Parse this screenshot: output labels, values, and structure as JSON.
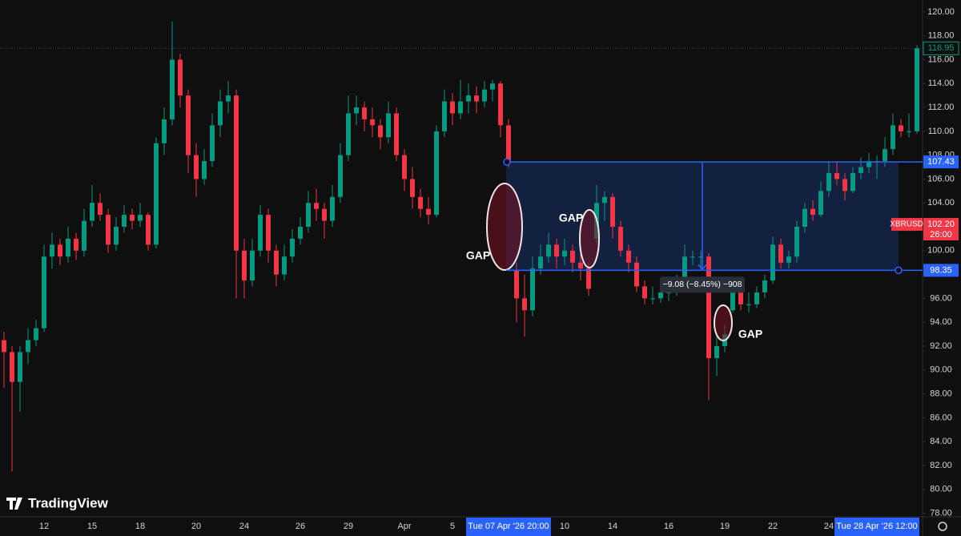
{
  "chart_data": {
    "type": "candlestick",
    "symbol": "XBRUSD",
    "up_color": "#089981",
    "down_color": "#f23645",
    "ylim": [
      77.7,
      121.0
    ],
    "yticks": [
      {
        "value": 78,
        "label": "78.00"
      },
      {
        "value": 80,
        "label": "80.00"
      },
      {
        "value": 82,
        "label": "82.00"
      },
      {
        "value": 84,
        "label": "84.00"
      },
      {
        "value": 86,
        "label": "86.00"
      },
      {
        "value": 88,
        "label": "88.00"
      },
      {
        "value": 90,
        "label": "90.00"
      },
      {
        "value": 92,
        "label": "92.00"
      },
      {
        "value": 94,
        "label": "94.00"
      },
      {
        "value": 96,
        "label": "96.00"
      },
      {
        "value": 100,
        "label": "100.00"
      },
      {
        "value": 104,
        "label": "104.00"
      },
      {
        "value": 106,
        "label": "106.00"
      },
      {
        "value": 108,
        "label": "108.00"
      },
      {
        "value": 110,
        "label": "110.00"
      },
      {
        "value": 112,
        "label": "112.00"
      },
      {
        "value": 114,
        "label": "114.00"
      },
      {
        "value": 116,
        "label": "116.00"
      },
      {
        "value": 118,
        "label": "118.00"
      },
      {
        "value": 120,
        "label": "120.00"
      }
    ],
    "categories": [
      null,
      null,
      null,
      null,
      null,
      "12",
      null,
      null,
      null,
      null,
      null,
      "15",
      null,
      null,
      null,
      null,
      null,
      "18",
      null,
      null,
      null,
      null,
      null,
      null,
      "20",
      null,
      null,
      null,
      null,
      null,
      "24",
      null,
      null,
      null,
      null,
      null,
      null,
      "26",
      null,
      null,
      null,
      null,
      null,
      "29",
      null,
      null,
      null,
      null,
      null,
      null,
      "Apr",
      null,
      null,
      null,
      null,
      null,
      "5",
      null,
      null,
      null,
      null,
      null,
      null,
      {
        "label": "Tue 07 Apr '26  20:00",
        "highlight": true
      },
      null,
      null,
      null,
      null,
      null,
      null,
      "10",
      null,
      null,
      null,
      null,
      null,
      "14",
      null,
      null,
      null,
      null,
      null,
      null,
      "16",
      null,
      null,
      null,
      null,
      null,
      null,
      "19",
      null,
      null,
      null,
      null,
      null,
      "22",
      null,
      null,
      null,
      null,
      null,
      null,
      "24",
      null,
      null,
      null,
      null,
      null,
      {
        "label": "Tue 28 Apr '26  12:00",
        "highlight": true
      },
      null,
      null,
      null,
      null,
      null
    ],
    "candles": [
      [
        92.5,
        93.2,
        88.5,
        91.5
      ],
      [
        91.5,
        92,
        81.5,
        89
      ],
      [
        89,
        92,
        86.5,
        91.5
      ],
      [
        91.5,
        93.5,
        90.5,
        92.5
      ],
      [
        92.5,
        94.2,
        92,
        93.5
      ],
      [
        93.5,
        100.5,
        93.2,
        99.5
      ],
      [
        99.5,
        101.5,
        98.5,
        100.5
      ],
      [
        100.5,
        101,
        98.8,
        99.5
      ],
      [
        99.5,
        102,
        99,
        101
      ],
      [
        101,
        101.5,
        99.2,
        100
      ],
      [
        100,
        103.5,
        99.5,
        102.5
      ],
      [
        102.5,
        105.5,
        102,
        104
      ],
      [
        104,
        104.8,
        102.5,
        103
      ],
      [
        103,
        103.5,
        99.8,
        100.5
      ],
      [
        100.5,
        102.8,
        100,
        102
      ],
      [
        102,
        103.8,
        101.5,
        103
      ],
      [
        103,
        103.5,
        101.8,
        102.5
      ],
      [
        102.5,
        104,
        102,
        103
      ],
      [
        103,
        103.2,
        100,
        100.5
      ],
      [
        100.5,
        109.5,
        100.2,
        109
      ],
      [
        109,
        112,
        108,
        111
      ],
      [
        111,
        119.2,
        110.5,
        116
      ],
      [
        116,
        116.5,
        112,
        113
      ],
      [
        113,
        113.5,
        106.5,
        108
      ],
      [
        108,
        109,
        104.5,
        106
      ],
      [
        106,
        108.5,
        105.5,
        107.5
      ],
      [
        107.5,
        111.5,
        107,
        110.5
      ],
      [
        110.5,
        113.5,
        109.5,
        112.5
      ],
      [
        112.5,
        114.2,
        111.5,
        113
      ],
      [
        113,
        113.5,
        96,
        100
      ],
      [
        100,
        101,
        96,
        97.5
      ],
      [
        97.5,
        101,
        97,
        100
      ],
      [
        100,
        103.8,
        99.5,
        103
      ],
      [
        103,
        103.5,
        99,
        100
      ],
      [
        100,
        100.5,
        97,
        98
      ],
      [
        98,
        100.5,
        97.5,
        99.5
      ],
      [
        99.5,
        101.8,
        99,
        101
      ],
      [
        101,
        102.8,
        100.5,
        102
      ],
      [
        102,
        105,
        101.5,
        104
      ],
      [
        104,
        105.2,
        102.5,
        103.5
      ],
      [
        103.5,
        104,
        101,
        102.5
      ],
      [
        102.5,
        105.5,
        102,
        104.5
      ],
      [
        104.5,
        109,
        104,
        108
      ],
      [
        108,
        113,
        107.5,
        111.5
      ],
      [
        111.5,
        113,
        110.5,
        112
      ],
      [
        112,
        112.5,
        110,
        111
      ],
      [
        111,
        112,
        109.5,
        110.5
      ],
      [
        110.5,
        111,
        108.5,
        109.5
      ],
      [
        109.5,
        112.5,
        109,
        111.5
      ],
      [
        111.5,
        112,
        107.5,
        108
      ],
      [
        108,
        108.5,
        105,
        106
      ],
      [
        106,
        107,
        103.5,
        104.5
      ],
      [
        104.5,
        105.2,
        102.8,
        103.5
      ],
      [
        103.5,
        104.5,
        102.2,
        103
      ],
      [
        103,
        110.5,
        102.8,
        110
      ],
      [
        110,
        113.5,
        109.5,
        112.5
      ],
      [
        112.5,
        113.2,
        110.5,
        111.5
      ],
      [
        111.5,
        114.3,
        111,
        112.5
      ],
      [
        112.5,
        114,
        111.5,
        113
      ],
      [
        113,
        113.8,
        111.5,
        112.5
      ],
      [
        112.5,
        114.2,
        112,
        113.5
      ],
      [
        113.5,
        114.3,
        112.5,
        114
      ],
      [
        114,
        114.2,
        109.5,
        110.5
      ],
      [
        110.5,
        111,
        107,
        107.5
      ],
      [
        98.3,
        99,
        94,
        96
      ],
      [
        96,
        98,
        92.8,
        95
      ],
      [
        95,
        99.5,
        94.5,
        98.5
      ],
      [
        98.5,
        100.5,
        98,
        99.5
      ],
      [
        99.5,
        101.5,
        99,
        100.5
      ],
      [
        100.5,
        101,
        98.5,
        99.5
      ],
      [
        99.5,
        101,
        98.8,
        100
      ],
      [
        100,
        100.5,
        98.2,
        99
      ],
      [
        99,
        100,
        97.5,
        98.5
      ],
      [
        98.5,
        99,
        96.2,
        96.8
      ],
      [
        101,
        105.5,
        100.5,
        104
      ],
      [
        104,
        105,
        102.5,
        104.5
      ],
      [
        104.5,
        104.8,
        101,
        102
      ],
      [
        102,
        102.5,
        99.5,
        100
      ],
      [
        100,
        100.5,
        98.2,
        99
      ],
      [
        99,
        99.5,
        96.5,
        97
      ],
      [
        97,
        97.5,
        95.5,
        96
      ],
      [
        96,
        97,
        95.5,
        96
      ],
      [
        96,
        97.2,
        95.6,
        96.5
      ],
      [
        96.5,
        97,
        95.8,
        96.5
      ],
      [
        96.5,
        98,
        96.2,
        97.5
      ],
      [
        97.5,
        100.5,
        97,
        99.5
      ],
      [
        99.5,
        100,
        98.8,
        99.5
      ],
      [
        99.5,
        100,
        98.5,
        99.5
      ],
      [
        99.5,
        99.8,
        87.5,
        91
      ],
      [
        91,
        93,
        89.5,
        92
      ],
      [
        92,
        93.8,
        91.5,
        93
      ],
      [
        95,
        97.2,
        94.8,
        96.5
      ],
      [
        96.5,
        97,
        95,
        95.5
      ],
      [
        95.5,
        96.5,
        94.8,
        95.5
      ],
      [
        95.5,
        97,
        95.2,
        96.5
      ],
      [
        96.5,
        98,
        96,
        97.5
      ],
      [
        97.5,
        101.2,
        97.2,
        100.5
      ],
      [
        100.5,
        101,
        98.5,
        99
      ],
      [
        99,
        100,
        98.5,
        99.5
      ],
      [
        99.5,
        102.5,
        99,
        102
      ],
      [
        102,
        104,
        101.5,
        103.5
      ],
      [
        103.5,
        104.2,
        102.5,
        103
      ],
      [
        103,
        105.8,
        102.8,
        105
      ],
      [
        105,
        107.5,
        104.5,
        106.5
      ],
      [
        106.5,
        107.5,
        105.5,
        106
      ],
      [
        106,
        106.5,
        104.2,
        105
      ],
      [
        105,
        107,
        104.8,
        106.5
      ],
      [
        106.5,
        107.8,
        106,
        107
      ],
      [
        107,
        108.2,
        106.5,
        107.5
      ],
      [
        107.5,
        108,
        106,
        107.5
      ],
      [
        107.5,
        109.5,
        107,
        108.5
      ],
      [
        108.5,
        111.5,
        108,
        110.5
      ],
      [
        110.5,
        111,
        109.5,
        110
      ],
      [
        110,
        111.5,
        109.5,
        110
      ],
      [
        110,
        117.2,
        109.8,
        116.95
      ]
    ],
    "last_price": {
      "value": 116.95
    },
    "symbol_price": {
      "value": 102.2,
      "label": "102.20",
      "countdown": "26:00"
    },
    "range_box": {
      "top": 107.43,
      "bottom": 98.35,
      "color": "#2962ff",
      "measure": "−9.08 (−8.45%) −908"
    },
    "annotations": [
      "GAP",
      "GAP",
      "GAP"
    ],
    "watermark": "TradingView"
  }
}
